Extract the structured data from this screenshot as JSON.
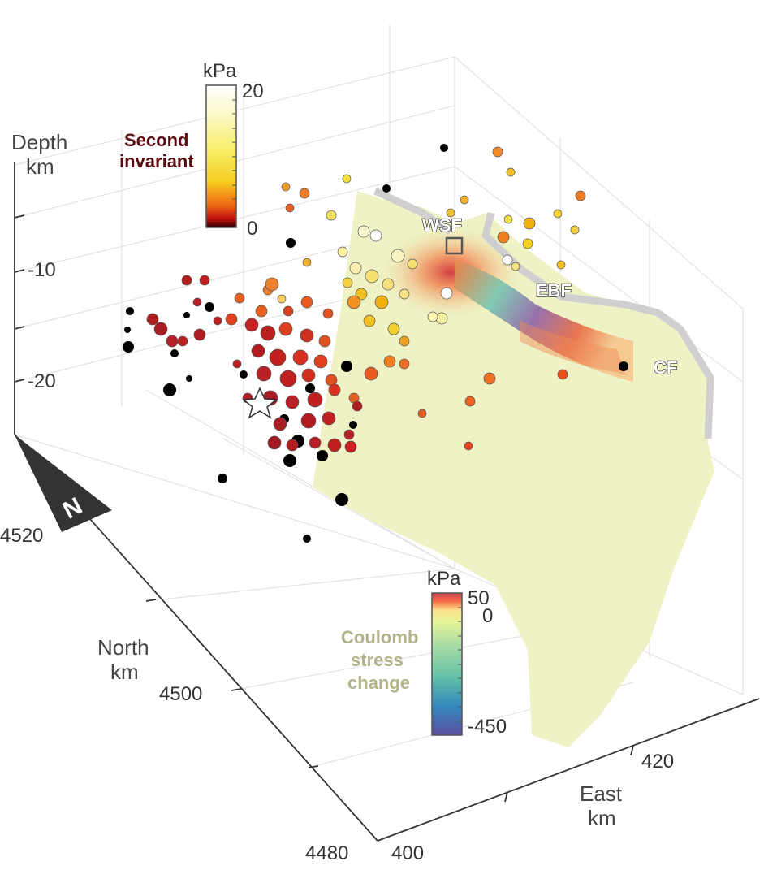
{
  "chart_data": {
    "type": "scatter",
    "subtype": "3d-scatter-with-fault-surface",
    "axes": {
      "z": {
        "label_line1": "Depth",
        "label_line2": "km",
        "ticks": [
          "-10",
          "-20"
        ]
      },
      "north": {
        "label_line1": "North",
        "label_line2": "km",
        "ticks": [
          "4520",
          "4500",
          "4480"
        ]
      },
      "east": {
        "label_line1": "East",
        "label_line2": "km",
        "ticks": [
          "400",
          "420"
        ]
      }
    },
    "grid": true,
    "north_arrow": "N",
    "faults": [
      "WSF",
      "EBF",
      "CF"
    ],
    "colorbars": [
      {
        "unit": "kPa",
        "max_label": "20",
        "min_label": "0",
        "title_line1": "Second",
        "title_line2": "invariant",
        "colormap": "hot"
      },
      {
        "unit": "kPa",
        "max_label": "50",
        "zero_label": "0",
        "min_label": "-450",
        "title_line1": "Coulomb",
        "title_line2": "stress",
        "title_line3": "change",
        "colormap": "spectral"
      }
    ],
    "colors": {
      "surface_base": "#eef2c4",
      "positive_stress": "#e8553a",
      "negative_stress": "#6a4a9a",
      "fault_trace": "#cfcfcf",
      "axis": "#333333",
      "grid": "#e3e3e3"
    }
  }
}
